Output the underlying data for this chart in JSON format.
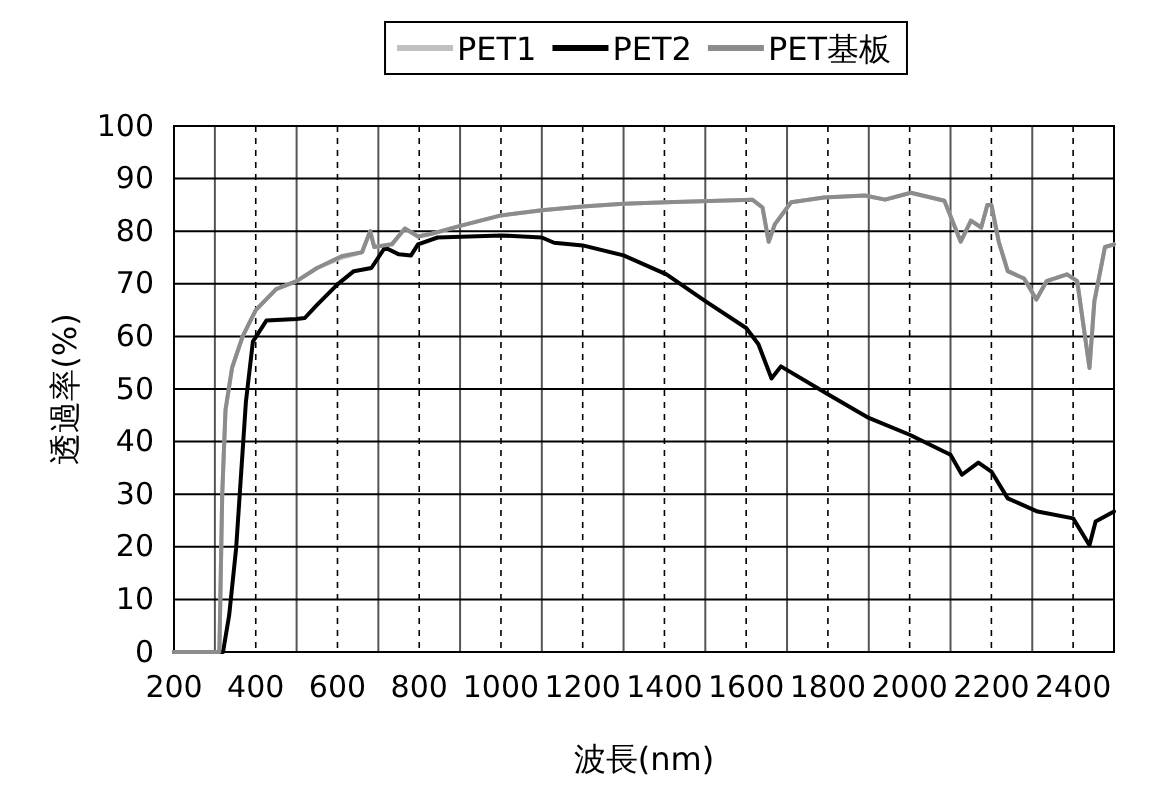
{
  "chart_data": {
    "type": "line",
    "xlabel": "波長(nm)",
    "ylabel": "透過率(%)",
    "xlim": [
      200,
      2500
    ],
    "xticks": [
      200,
      {
        "value": 300,
        "label": null
      },
      400,
      {
        "value": 500,
        "label": null
      },
      600,
      {
        "value": 700,
        "label": null
      },
      800,
      {
        "value": 900,
        "label": null
      },
      1000,
      {
        "value": 1100,
        "label": null
      },
      1200,
      {
        "value": 1300,
        "label": null
      },
      1400,
      {
        "value": 1500,
        "label": null
      },
      1600,
      {
        "value": 1700,
        "label": null
      },
      1800,
      {
        "value": 1900,
        "label": null
      },
      2000,
      {
        "value": 2100,
        "label": null
      },
      2200,
      {
        "value": 2300,
        "label": null
      },
      2400
    ],
    "ylim": [
      0,
      100
    ],
    "yticks": [
      0,
      10,
      20,
      30,
      40,
      50,
      60,
      70,
      80,
      90,
      100
    ],
    "grid": true,
    "legend": "top",
    "line_style": "solid",
    "marker": "none",
    "series": [
      {
        "name": "PET1",
        "color": "#c0c0c0",
        "x": [
          200,
          311,
          318,
          326,
          342,
          368,
          400,
          450,
          500,
          550,
          612,
          660,
          680,
          690,
          733,
          765,
          797,
          830,
          900,
          1000,
          1100,
          1200,
          1300,
          1405,
          1615,
          1640,
          1655,
          1670,
          1710,
          1790,
          1890,
          1940,
          2003,
          2085,
          2125,
          2150,
          2175,
          2185,
          2190,
          2200,
          2218,
          2240,
          2280,
          2310,
          2335,
          2385,
          2410,
          2440,
          2452,
          2478,
          2500
        ],
        "values": [
          0,
          0,
          30,
          46,
          54,
          60,
          65,
          69,
          70.5,
          73,
          75,
          76,
          80,
          77,
          77.5,
          80.5,
          79,
          79.5,
          81,
          83,
          84,
          84.7,
          85.2,
          85.5,
          86,
          84.5,
          78,
          81.3,
          85.5,
          86.4,
          86.8,
          86,
          87.3,
          85.8,
          78,
          82,
          80.7,
          83.5,
          85,
          85,
          78,
          72.4,
          71,
          67,
          70.5,
          71.8,
          70.5,
          54,
          66.7,
          77,
          77.5
        ]
      },
      {
        "name": "PET2",
        "color": "#000000",
        "x": [
          200,
          320,
          335,
          352,
          376,
          393,
          426,
          500,
          520,
          550,
          600,
          640,
          683,
          716,
          750,
          780,
          797,
          845,
          1000,
          1100,
          1130,
          1200,
          1300,
          1405,
          1500,
          1600,
          1630,
          1662,
          1685,
          1800,
          1900,
          2000,
          2100,
          2128,
          2168,
          2200,
          2240,
          2313,
          2400,
          2440,
          2455,
          2500
        ],
        "values": [
          0,
          0,
          7,
          19.7,
          47.6,
          59,
          63,
          63.3,
          63.5,
          66,
          69.9,
          72.4,
          73,
          76.9,
          75.6,
          75.4,
          77.5,
          78.8,
          79.2,
          78.8,
          77.8,
          77.3,
          75.4,
          71.8,
          66.7,
          61.6,
          58.5,
          52,
          54.3,
          49,
          44.5,
          41.3,
          37.5,
          33.7,
          36,
          34.3,
          29.2,
          26.7,
          25.4,
          20.3,
          24.8,
          26.7
        ]
      },
      {
        "name": "PET基板",
        "color": "#8c8c8c",
        "x": [
          200,
          311,
          318,
          326,
          342,
          368,
          400,
          450,
          500,
          550,
          612,
          660,
          680,
          690,
          733,
          765,
          797,
          830,
          900,
          1000,
          1100,
          1200,
          1300,
          1405,
          1615,
          1640,
          1655,
          1670,
          1710,
          1790,
          1890,
          1940,
          2003,
          2085,
          2125,
          2150,
          2175,
          2185,
          2190,
          2200,
          2218,
          2240,
          2280,
          2310,
          2335,
          2385,
          2410,
          2440,
          2452,
          2478,
          2500
        ],
        "values": [
          0,
          0,
          30,
          46,
          54,
          60,
          65,
          69,
          70.5,
          73,
          75.3,
          76,
          80,
          77,
          77.5,
          80.5,
          79,
          79.5,
          81,
          83,
          84,
          84.7,
          85.2,
          85.5,
          86,
          84.5,
          78,
          81.3,
          85.5,
          86.4,
          86.8,
          86,
          87.3,
          85.8,
          78,
          82,
          80.7,
          83.5,
          85,
          85,
          78,
          72.4,
          71,
          67,
          70.5,
          71.8,
          70.5,
          54,
          66.7,
          77,
          77.5
        ]
      }
    ]
  }
}
